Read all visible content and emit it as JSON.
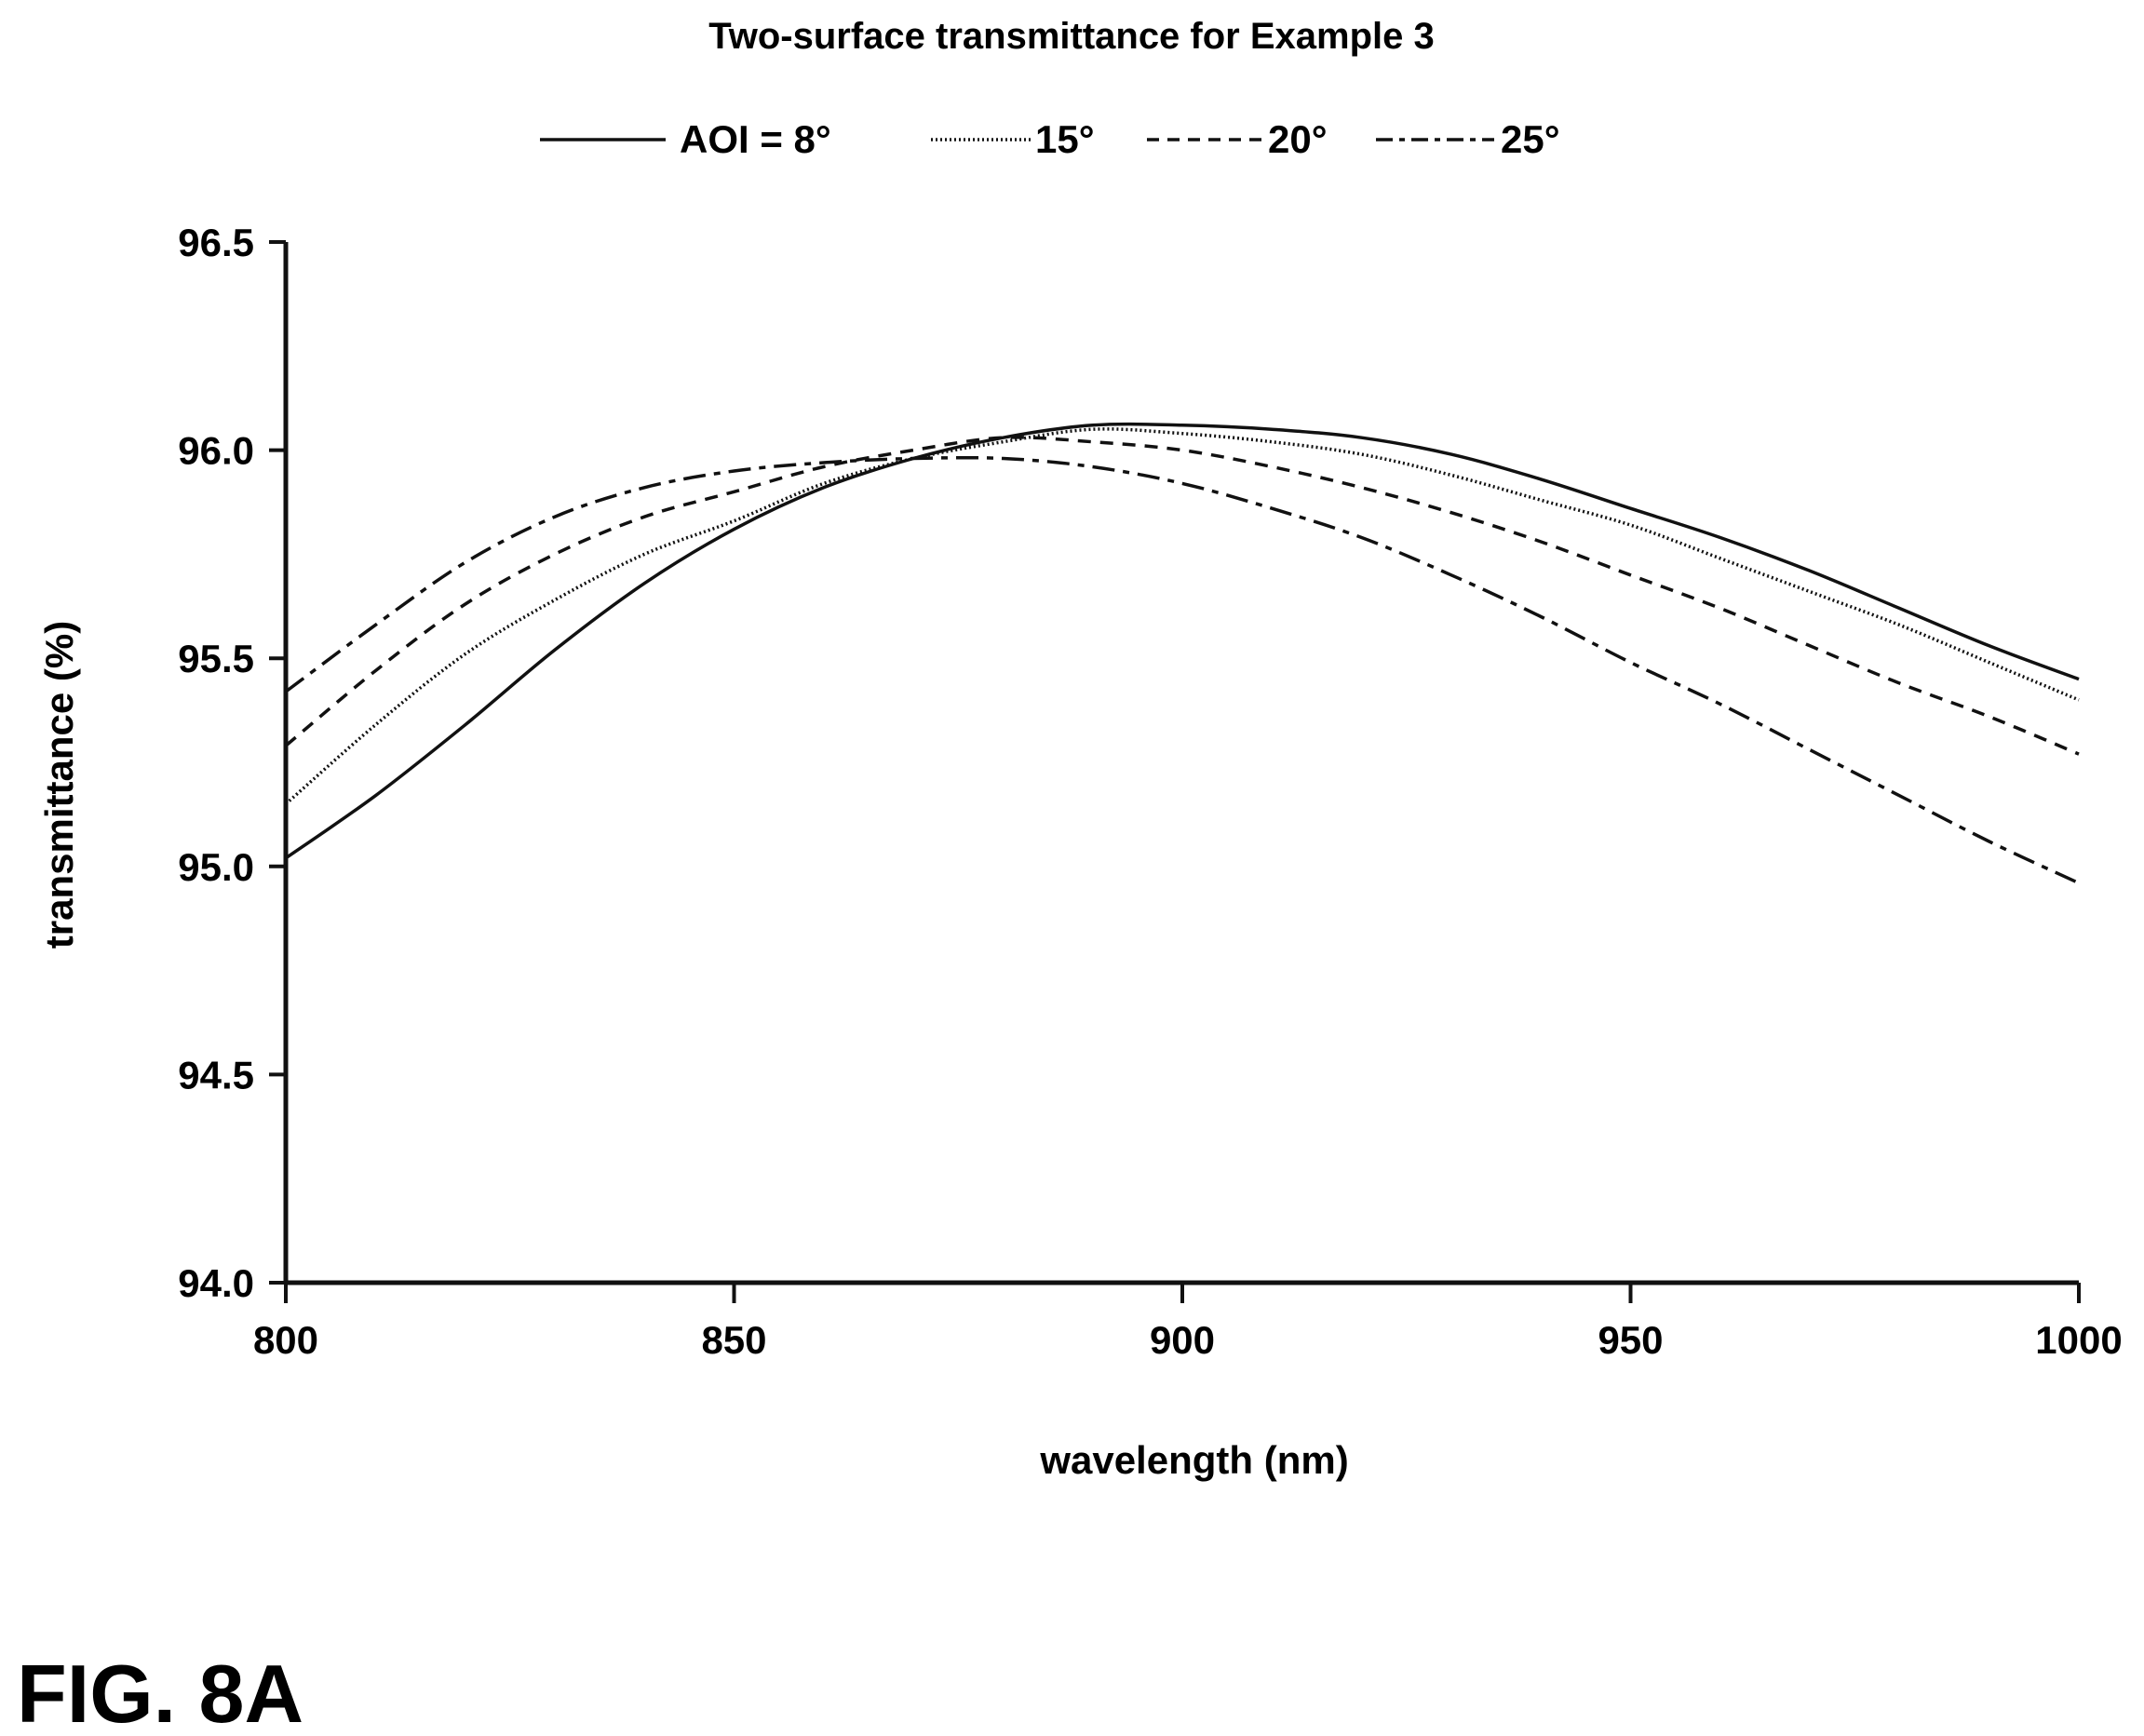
{
  "chart_data": {
    "type": "line",
    "title": "Two-surface transmittance for Example 3",
    "xlabel": "wavelength (nm)",
    "ylabel": "transmittance (%)",
    "xlim": [
      800,
      1000
    ],
    "ylim": [
      94.0,
      96.5
    ],
    "x_ticks": [
      800,
      850,
      900,
      950,
      1000
    ],
    "y_ticks": [
      "94.0",
      "94.5",
      "95.0",
      "95.5",
      "96.0",
      "96.5"
    ],
    "grid": false,
    "legend_position": "top-center",
    "x": [
      800,
      810,
      820,
      830,
      840,
      850,
      860,
      870,
      880,
      890,
      900,
      910,
      920,
      930,
      940,
      950,
      960,
      970,
      980,
      990,
      1000
    ],
    "series": [
      {
        "name": "AOI = 8°",
        "style": "solid",
        "values": [
          95.02,
          95.17,
          95.34,
          95.52,
          95.68,
          95.81,
          95.91,
          95.98,
          96.03,
          96.06,
          96.06,
          96.05,
          96.03,
          95.99,
          95.93,
          95.86,
          95.79,
          95.71,
          95.62,
          95.53,
          95.45
        ]
      },
      {
        "name": "15°",
        "style": "dotted",
        "values": [
          95.15,
          95.34,
          95.51,
          95.64,
          95.75,
          95.83,
          95.92,
          95.98,
          96.02,
          96.05,
          96.04,
          96.02,
          95.99,
          95.94,
          95.88,
          95.82,
          95.74,
          95.66,
          95.58,
          95.49,
          95.4
        ]
      },
      {
        "name": "20°",
        "style": "dashed",
        "values": [
          95.29,
          95.47,
          95.63,
          95.75,
          95.84,
          95.9,
          95.96,
          96.0,
          96.03,
          96.02,
          96.0,
          95.96,
          95.91,
          95.85,
          95.78,
          95.7,
          95.62,
          95.53,
          95.44,
          95.36,
          95.27
        ]
      },
      {
        "name": "25°",
        "style": "dash-dot",
        "values": [
          95.42,
          95.58,
          95.73,
          95.84,
          95.91,
          95.95,
          95.97,
          95.98,
          95.98,
          95.96,
          95.92,
          95.86,
          95.79,
          95.7,
          95.6,
          95.49,
          95.39,
          95.28,
          95.17,
          95.06,
          94.96
        ]
      }
    ]
  },
  "figure_label": "FIG. 8A"
}
